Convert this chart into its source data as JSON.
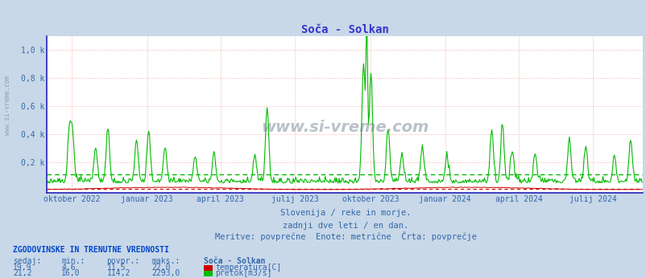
{
  "title": "Soča - Solkan",
  "title_color": "#3333cc",
  "bg_color": "#c8d8e8",
  "plot_bg_color": "#ffffff",
  "fig_width": 8.03,
  "fig_height": 3.46,
  "dpi": 100,
  "n_days": 730,
  "y_max": 1100,
  "y_min": -22,
  "ytick_vals": [
    200,
    400,
    600,
    800,
    1000
  ],
  "ytick_labels": [
    "0,2 k",
    "0,4 k",
    "0,6 k",
    "0,8 k",
    "1,0 k"
  ],
  "x_tick_labels": [
    "oktober 2022",
    "januar 2023",
    "april 2023",
    "julij 2023",
    "oktober 2023",
    "januar 2024",
    "april 2024",
    "julij 2024"
  ],
  "x_tick_positions": [
    31,
    123,
    213,
    304,
    397,
    488,
    578,
    669
  ],
  "grid_color": "#ff9999",
  "temp_color": "#cc0000",
  "flow_color": "#00bb00",
  "avg_flow_line": 114.2,
  "avg_temp_line": 11.5,
  "watermark": "www.si-vreme.com",
  "sub_text1": "Slovenija / reke in morje.",
  "sub_text2": "zadnji dve leti / en dan.",
  "sub_text3": "Meritve: povprečne  Enote: metrične  Črta: povprečje",
  "footer_title": "ZGODOVINSKE IN TRENUTNE VREDNOSTI",
  "footer_cols": [
    "sedaj:",
    "min.:",
    "povpr.:",
    "maks.:"
  ],
  "footer_temp": [
    "19,9",
    "4,6",
    "11,5",
    "22,0"
  ],
  "footer_flow": [
    "21,2",
    "16,0",
    "114,2",
    "2293,0"
  ],
  "footer_temp_label": "temperatura[C]",
  "footer_flow_label": "pretok[m3/s]",
  "footer_station": "Soča - Solkan",
  "spine_color": "#2222bb",
  "text_color": "#3366aa",
  "footer_text_color": "#3366aa",
  "sidebar_text": "www.si-vreme.com"
}
